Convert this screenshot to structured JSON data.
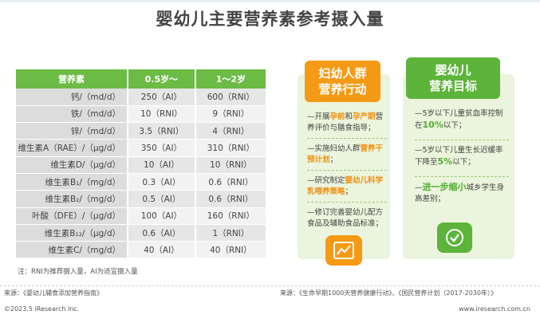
{
  "title": "婴幼儿主要营养素参考摄入量",
  "table": {
    "headers": [
      "营养素",
      "0.5岁～",
      "1～2岁"
    ],
    "rows": [
      [
        "钙/（md/d）",
        "250（AI）",
        "600（RNI）"
      ],
      [
        "铁/（md/d）",
        "10（RNI）",
        "9（RNI）"
      ],
      [
        "锌/（md/d）",
        "3.5（RNI）",
        "4（RNI）"
      ],
      [
        "维生素A（RAE）/（μg/d）",
        "350（AI）",
        "310（RNI）"
      ],
      [
        "维生素D/（μg/d）",
        "10（AI）",
        "10（RNI）"
      ],
      [
        "维生素B₁/（mg/d）",
        "0.3（AI）",
        "0.6（RNI）"
      ],
      [
        "维生素B₂/（mg/d）",
        "0.5（AI）",
        "0.6（RNI）"
      ],
      [
        "叶酸（DFE）/（μg/d）",
        "100（AI）",
        "160（RNI）"
      ],
      [
        "维生素B₁₂/（μg/d）",
        "0.6（AI）",
        "1（RNI）"
      ],
      [
        "维生素C/（mg/d）",
        "40（AI）",
        "40（RNI）"
      ]
    ],
    "note": "注：RNI为推荐摄入量，AI为适宜摄入量"
  },
  "card_left": {
    "title_line1": "妇幼人群",
    "title_line2": "营养行动",
    "items": [
      {
        "pre": "—开展",
        "hl1": "孕前",
        "mid": "和",
        "hl2": "孕产期",
        "post": "营养评价与膳食指导；"
      },
      {
        "pre": "—实施妇幼人群",
        "hl1": "营养干预计划",
        "post": "；"
      },
      {
        "pre": "—研究制定",
        "hl1": "婴幼儿科学乳喂养策略",
        "post": "；"
      },
      {
        "pre": "—修订完善婴幼儿配方食品及辅助食品标准；"
      }
    ],
    "icon": "chart-icon"
  },
  "card_right": {
    "title_line1": "婴幼儿",
    "title_line2": "营养目标",
    "items": [
      {
        "pre": "—5岁以下儿童贫血率控制在",
        "hl": "10%",
        "post": "以下；"
      },
      {
        "pre": "—5岁以下儿童生长迟缓率下降至",
        "hl": "5%",
        "post": "以下；"
      },
      {
        "pre": "—",
        "hl": "进一步缩小",
        "post": "城乡学生身高差别；"
      }
    ],
    "icon": "check-icon"
  },
  "source_left": "来源：《婴幼儿辅食添加营养指南》",
  "source_right": "来源：《生命早期1000天营养健康行动》、《国民营养计划（2017-2030年）》",
  "footer_left": "©2023.5 iResearch Inc.",
  "footer_right": "www.iresearch.com.cn",
  "colors": {
    "green": "#5cb43a",
    "orange": "#f59a14",
    "card_bg": "#ebf4dc"
  }
}
